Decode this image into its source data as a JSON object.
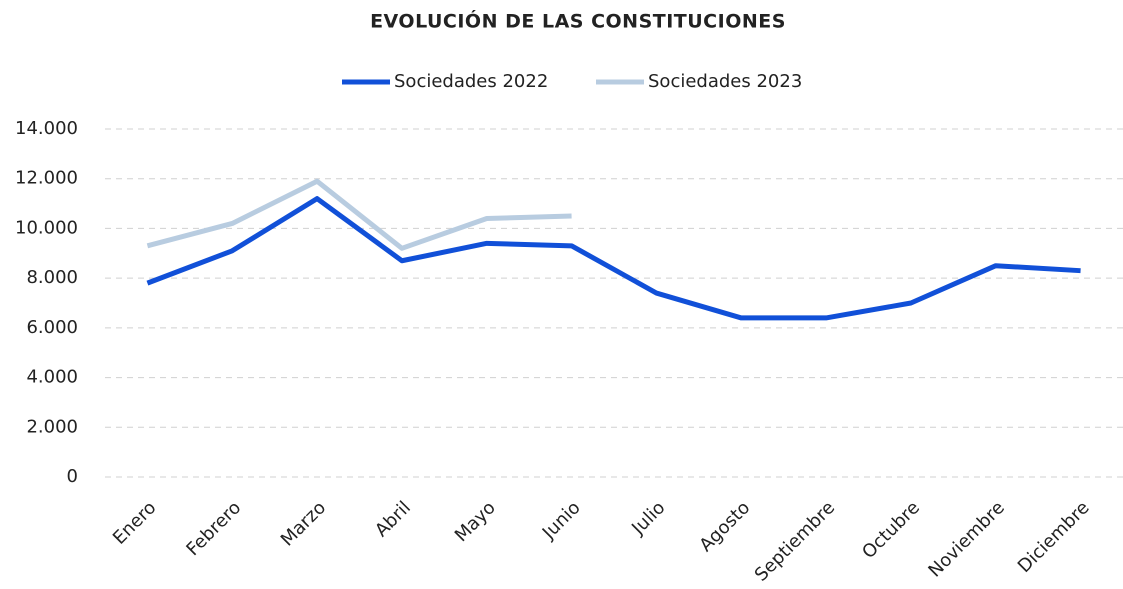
{
  "chart_data": {
    "type": "line",
    "title": "EVOLUCIÓN DE LAS CONSTITUCIONES",
    "categories": [
      "Enero",
      "Febrero",
      "Marzo",
      "Abril",
      "Mayo",
      "Junio",
      "Julio",
      "Agosto",
      "Septiembre",
      "Octubre",
      "Noviembre",
      "Diciembre"
    ],
    "series": [
      {
        "name": "Sociedades 2022",
        "color": "#1150d8",
        "values": [
          7800,
          9100,
          11200,
          8700,
          9400,
          9300,
          7400,
          6400,
          6400,
          7000,
          8500,
          8300
        ]
      },
      {
        "name": "Sociedades 2023",
        "color": "#b8cce0",
        "values": [
          9300,
          10200,
          11900,
          9200,
          10400,
          10500,
          null,
          null,
          null,
          null,
          null,
          null
        ]
      }
    ],
    "ylim": [
      0,
      14000
    ],
    "yticks": [
      0,
      {
        "value": 2000,
        "label": "2.000"
      },
      {
        "value": 4000,
        "label": "4.000"
      },
      {
        "value": 6000,
        "label": "6.000"
      },
      {
        "value": 8000,
        "label": "8.000"
      },
      {
        "value": 10000,
        "label": "10.000"
      },
      {
        "value": 12000,
        "label": "12.000"
      },
      {
        "value": 14000,
        "label": "14.000"
      }
    ],
    "grid": true,
    "legend": "top"
  }
}
